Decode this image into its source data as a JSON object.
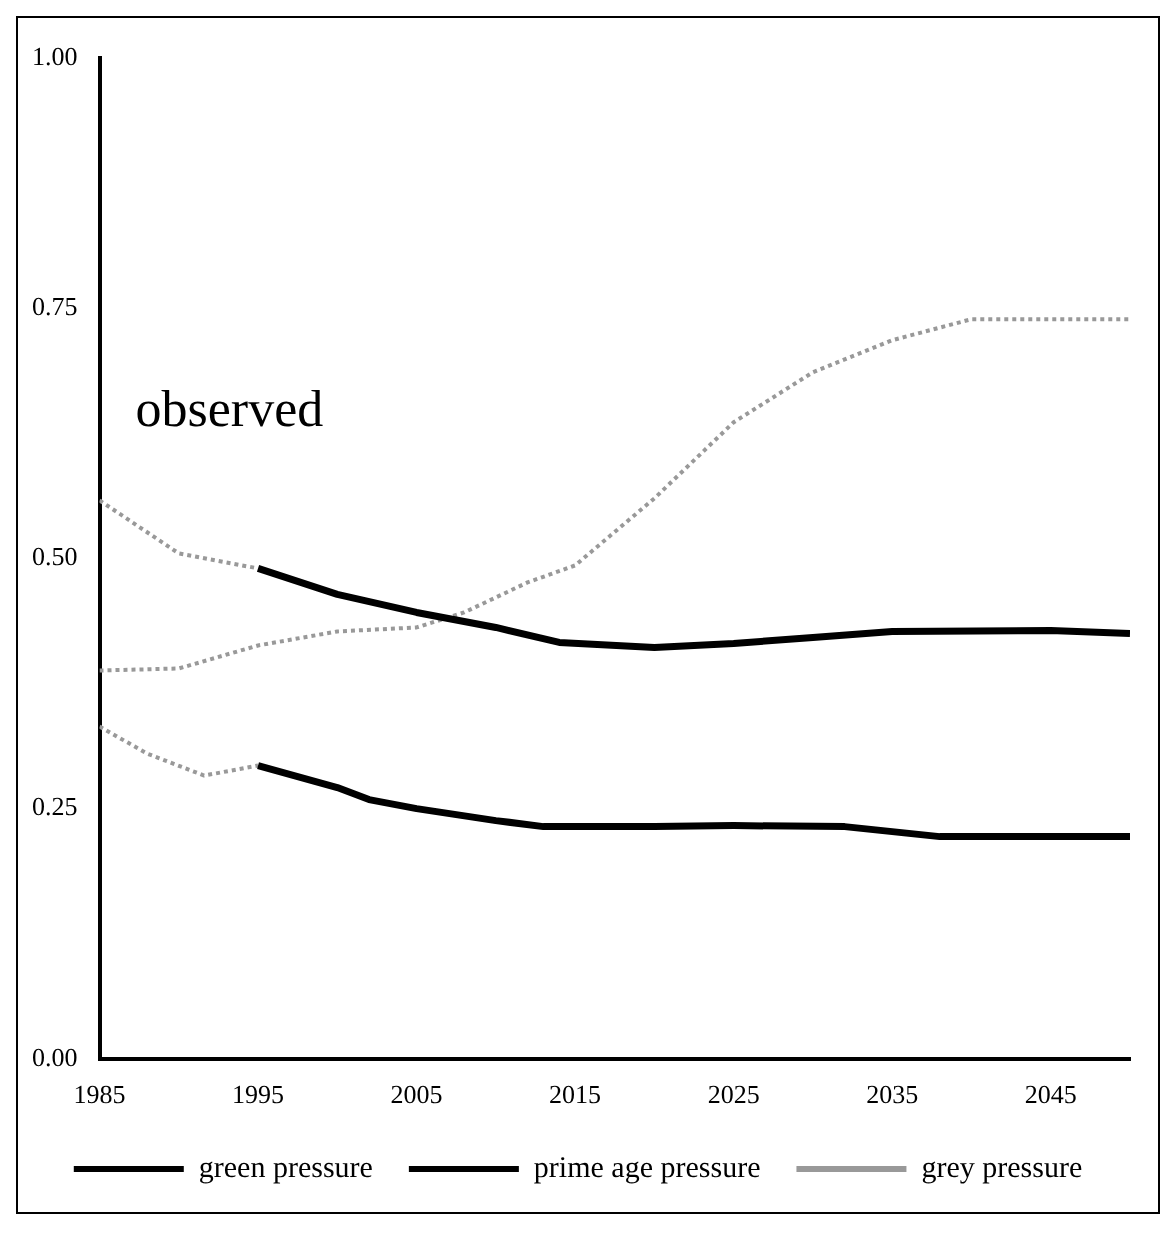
{
  "chart_data": {
    "type": "line",
    "annotations": [
      "observed"
    ],
    "xlim": [
      1985,
      2050
    ],
    "xticks": [
      1985,
      1995,
      2005,
      2015,
      2025,
      2035,
      2045
    ],
    "ylim": [
      0,
      1
    ],
    "yticks": [
      {
        "value": 0,
        "label": "0.00"
      },
      {
        "value": 0.25,
        "label": "0.25"
      },
      {
        "value": 0.5,
        "label": "0.50"
      },
      {
        "value": 0.75,
        "label": "0.75"
      },
      {
        "value": 1,
        "label": "1.00"
      }
    ],
    "grid": false,
    "legend": "bottom",
    "marker": "none",
    "series": [
      {
        "name": "green pressure",
        "color": "#000000",
        "line_style": "solid",
        "x": [
          1995,
          2000,
          2002,
          2005,
          2010,
          2013,
          2020,
          2025,
          2032,
          2038,
          2045,
          2050
        ],
        "values": [
          0.293,
          0.271,
          0.259,
          0.25,
          0.238,
          0.232,
          0.232,
          0.233,
          0.232,
          0.222,
          0.222,
          0.222
        ]
      },
      {
        "name": "prime age pressure",
        "color": "#000000",
        "line_style": "solid",
        "x": [
          1995,
          2000,
          2005,
          2010,
          2014,
          2020,
          2025,
          2030,
          2035,
          2045,
          2050
        ],
        "values": [
          0.49,
          0.464,
          0.446,
          0.431,
          0.416,
          0.411,
          0.415,
          0.421,
          0.427,
          0.428,
          0.425
        ]
      },
      {
        "name": "grey pressure",
        "color": "#999999",
        "line_style": "dotted",
        "x": [
          1985,
          1990,
          1995,
          2000,
          2005,
          2008,
          2012,
          2015,
          2020,
          2025,
          2030,
          2035,
          2040,
          2045,
          2050
        ],
        "values": [
          0.388,
          0.39,
          0.413,
          0.427,
          0.431,
          0.446,
          0.476,
          0.493,
          0.56,
          0.636,
          0.686,
          0.718,
          0.739,
          0.739,
          0.739
        ]
      },
      {
        "color": "#999999",
        "line_style": "dotted",
        "x": [
          1985,
          1988,
          1991.6,
          1995
        ],
        "values": [
          0.332,
          0.305,
          0.283,
          0.293
        ]
      },
      {
        "color": "#999999",
        "line_style": "dotted",
        "x": [
          1985,
          1990,
          1995
        ],
        "values": [
          0.558,
          0.505,
          0.49
        ]
      }
    ]
  }
}
